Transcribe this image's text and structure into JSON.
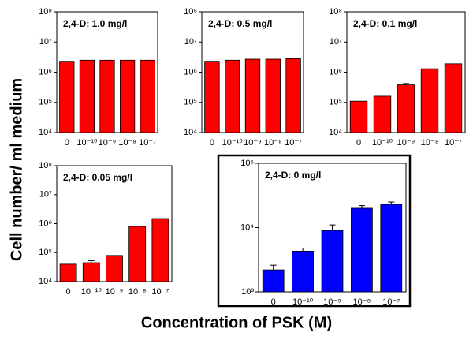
{
  "ylabel": "Cell number/ ml medium",
  "xlabel": "Concentration of PSK (M)",
  "chart_data": [
    {
      "type": "bar",
      "title": "2,4-D: 1.0 mg/l",
      "log_scale": true,
      "color": "#ff0000",
      "categories": [
        "0",
        "10⁻¹⁰",
        "10⁻⁹",
        "10⁻⁸",
        "10⁻⁷"
      ],
      "values": [
        2300000,
        2500000,
        2500000,
        2500000,
        2500000
      ],
      "errors": [
        null,
        null,
        null,
        null,
        null
      ],
      "ylim": [
        10000,
        100000000
      ],
      "yticks": [
        {
          "value": 10000,
          "label": "10⁴"
        },
        {
          "value": 100000,
          "label": "10⁵"
        },
        {
          "value": 1000000,
          "label": "10⁶"
        },
        {
          "value": 10000000,
          "label": "10⁷"
        },
        {
          "value": 100000000,
          "label": "10⁸"
        }
      ]
    },
    {
      "type": "bar",
      "title": "2,4-D: 0.5 mg/l",
      "log_scale": true,
      "color": "#ff0000",
      "categories": [
        "0",
        "10⁻¹⁰",
        "10⁻⁹",
        "10⁻⁸",
        "10⁻⁷"
      ],
      "values": [
        2300000,
        2500000,
        2700000,
        2700000,
        2800000
      ],
      "errors": [
        null,
        null,
        null,
        null,
        null
      ],
      "ylim": [
        10000,
        100000000
      ],
      "yticks": [
        {
          "value": 10000,
          "label": "10⁴"
        },
        {
          "value": 100000,
          "label": "10⁵"
        },
        {
          "value": 1000000,
          "label": "10⁶"
        },
        {
          "value": 10000000,
          "label": "10⁷"
        },
        {
          "value": 100000000,
          "label": "10⁸"
        }
      ]
    },
    {
      "type": "bar",
      "title": "2,4-D: 0.1 mg/l",
      "log_scale": true,
      "color": "#ff0000",
      "categories": [
        "0",
        "10⁻¹⁰",
        "10⁻⁹",
        "10⁻⁸",
        "10⁻⁷"
      ],
      "values": [
        110000,
        160000,
        380000,
        1300000,
        1900000
      ],
      "errors": [
        null,
        null,
        40000,
        null,
        null
      ],
      "ylim": [
        10000,
        100000000
      ],
      "yticks": [
        {
          "value": 10000,
          "label": "10⁴"
        },
        {
          "value": 100000,
          "label": "10⁵"
        },
        {
          "value": 1000000,
          "label": "10⁶"
        },
        {
          "value": 10000000,
          "label": "10⁷"
        },
        {
          "value": 100000000,
          "label": "10⁸"
        }
      ]
    },
    {
      "type": "bar",
      "title": "2,4-D: 0.05 mg/l",
      "log_scale": true,
      "color": "#ff0000",
      "categories": [
        "0",
        "10⁻¹⁰",
        "10⁻⁹",
        "10⁻⁸",
        "10⁻⁷"
      ],
      "values": [
        40000,
        45000,
        80000,
        800000,
        1500000
      ],
      "errors": [
        null,
        8000,
        null,
        null,
        null
      ],
      "ylim": [
        10000,
        100000000
      ],
      "yticks": [
        {
          "value": 10000,
          "label": "10⁴"
        },
        {
          "value": 100000,
          "label": "10⁵"
        },
        {
          "value": 1000000,
          "label": "10⁶"
        },
        {
          "value": 10000000,
          "label": "10⁷"
        },
        {
          "value": 100000000,
          "label": "10⁸"
        }
      ]
    },
    {
      "type": "bar",
      "title": "2,4-D: 0 mg/l",
      "log_scale": true,
      "color": "#0000ff",
      "categories": [
        "0",
        "10⁻¹⁰",
        "10⁻⁹",
        "10⁻⁸",
        "10⁻⁷"
      ],
      "values": [
        2200,
        4300,
        9000,
        20000,
        23000
      ],
      "errors": [
        400,
        500,
        2000,
        2000,
        2000
      ],
      "ylim": [
        1000,
        100000
      ],
      "yticks": [
        {
          "value": 1000,
          "label": "10³"
        },
        {
          "value": 10000,
          "label": "10⁴"
        },
        {
          "value": 100000,
          "label": "10⁵"
        }
      ]
    }
  ]
}
